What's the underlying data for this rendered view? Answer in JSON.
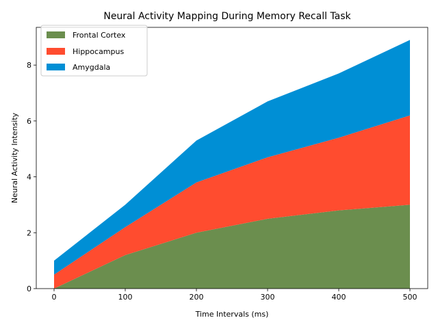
{
  "chart_data": {
    "type": "area",
    "stacked": true,
    "title": "Neural Activity Mapping During Memory Recall Task",
    "xlabel": "Time Intervals (ms)",
    "ylabel": "Neural Activity Intensity",
    "x": [
      0,
      100,
      200,
      300,
      400,
      500
    ],
    "xlim": [
      -25,
      525
    ],
    "ylim": [
      0,
      9.35
    ],
    "xticks": [
      0,
      100,
      200,
      300,
      400,
      500
    ],
    "yticks": [
      0,
      2,
      4,
      6,
      8
    ],
    "grid": false,
    "legend_position": "top-left",
    "series": [
      {
        "name": "Frontal Cortex",
        "color": "#6b8e4e",
        "values": [
          0.0,
          1.2,
          2.0,
          2.5,
          2.8,
          3.0
        ]
      },
      {
        "name": "Hippocampus",
        "color": "#ff4c2f",
        "values": [
          0.5,
          1.0,
          1.8,
          2.2,
          2.6,
          3.2
        ]
      },
      {
        "name": "Amygdala",
        "color": "#008fd5",
        "values": [
          0.5,
          0.8,
          1.5,
          2.0,
          2.3,
          2.7
        ]
      }
    ]
  }
}
